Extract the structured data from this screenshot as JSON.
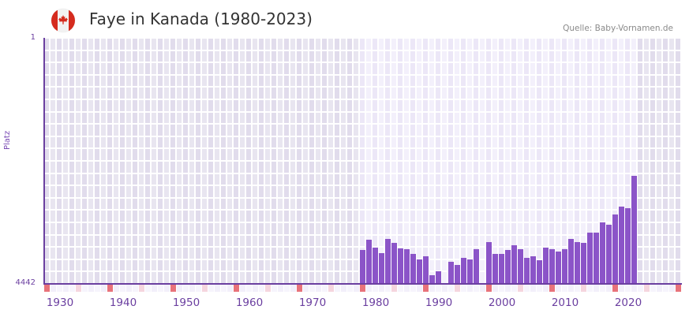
{
  "header": {
    "title": "Faye in Kanada (1980-2023)",
    "source": "Quelle: Baby-Vornamen.de",
    "flag_icon": "canada-flag-icon"
  },
  "colors": {
    "bar": "#8b54c8",
    "axis": "#6b3fa0",
    "decade_marker": "#e8727a",
    "half_decade_marker": "#f5d5de",
    "grid_active_a": "#f3f0fb",
    "grid_active_b": "#ece7f7",
    "grid_inactive_a": "#e8e5f0",
    "grid_inactive_b": "#e1dcec"
  },
  "chart_data": {
    "type": "bar",
    "title": "Faye in Kanada (1980-2023)",
    "xlabel": "",
    "ylabel": "Platz",
    "y_inverted": true,
    "ylim": [
      4442,
      1
    ],
    "y_ticks": [
      "1",
      "4442"
    ],
    "x_range": [
      1928,
      2028
    ],
    "x_ticks": [
      "1930",
      "1940",
      "1950",
      "1960",
      "1970",
      "1980",
      "1990",
      "2000",
      "2010",
      "2020"
    ],
    "grid": true,
    "legend": null,
    "source": "Quelle: Baby-Vornamen.de",
    "x": [
      1978,
      1979,
      1980,
      1981,
      1982,
      1983,
      1984,
      1985,
      1986,
      1987,
      1988,
      1989,
      1990,
      1991,
      1992,
      1993,
      1994,
      1995,
      1996,
      1997,
      1998,
      1999,
      2000,
      2001,
      2002,
      2003,
      2004,
      2005,
      2006,
      2007,
      2008,
      2009,
      2010,
      2011,
      2012,
      2013,
      2014,
      2015,
      2016,
      2017,
      2018,
      2019,
      2020,
      2021
    ],
    "values": [
      3825,
      3640,
      3782,
      3882,
      3626,
      3697,
      3797,
      3811,
      3896,
      3996,
      3939,
      4280,
      4209,
      null,
      4038,
      4095,
      3967,
      3996,
      3811,
      null,
      3683,
      3896,
      3896,
      3825,
      3740,
      3811,
      3967,
      3939,
      4010,
      3782,
      3811,
      3853,
      3811,
      3626,
      3683,
      3697,
      3512,
      3512,
      3327,
      3370,
      3185,
      3043,
      3071,
      2488
    ]
  },
  "labels": {
    "y_top": "1",
    "y_bottom": "4442",
    "y_title": "Platz",
    "x": [
      "1930",
      "1940",
      "1950",
      "1960",
      "1970",
      "1980",
      "1990",
      "2000",
      "2010",
      "2020"
    ]
  }
}
